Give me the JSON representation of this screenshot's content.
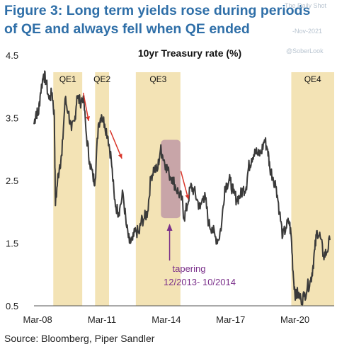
{
  "figure": {
    "title_line1": "Figure 3: Long term yields rose during periods",
    "title_line2": "of QE and always fell when QE ended",
    "source": "Source: Bloomberg, Piper Sandler",
    "watermark_brand": "The Daily Shot",
    "watermark_date": "-Nov-2021",
    "watermark_handle": "@SoberLook"
  },
  "colors": {
    "title": "#2f6fa8",
    "qe_band": "#f3e3b5",
    "tapering_band": "#bf9aa6",
    "line": "#3a3a3a",
    "arrow": "#d9362b",
    "annotation": "#7a2f8a"
  },
  "chart_data": {
    "type": "line",
    "title": "10yr Treasury rate (%)",
    "xlabel": "",
    "ylabel": "",
    "ylim": [
      0.5,
      4.5
    ],
    "xlim": [
      2008.0,
      2022.0
    ],
    "yticks": [
      4.5,
      3.5,
      2.5,
      1.5,
      0.5
    ],
    "ytick_labels": [
      "4.5",
      "3.5",
      "2.5",
      "1.5",
      "0.5"
    ],
    "xticks": [
      2008.17,
      2011.17,
      2014.17,
      2017.17,
      2020.17
    ],
    "xtick_labels": [
      "Mar-08",
      "Mar-11",
      "Mar-14",
      "Mar-17",
      "Mar-20"
    ],
    "grid": false,
    "legend": "none",
    "shaded_periods": [
      {
        "label": "QE1",
        "start": 2008.9,
        "end": 2010.25
      },
      {
        "label": "QE2",
        "start": 2010.85,
        "end": 2011.5
      },
      {
        "label": "QE3",
        "start": 2012.75,
        "end": 2014.83
      },
      {
        "label": "QE4",
        "start": 2020.0,
        "end": 2022.0
      }
    ],
    "tapering_period": {
      "start": 2013.92,
      "end": 2014.83,
      "ymin": 1.9,
      "ymax": 3.15
    },
    "annotation": {
      "line1": "tapering",
      "line2": "12/2013- 10/2014"
    },
    "arrows": [
      {
        "from": [
          2010.3,
          3.9
        ],
        "to": [
          2010.55,
          3.45
        ]
      },
      {
        "from": [
          2011.55,
          3.3
        ],
        "to": [
          2012.1,
          2.85
        ]
      },
      {
        "from": [
          2014.85,
          2.65
        ],
        "to": [
          2015.2,
          2.2
        ]
      }
    ],
    "series": [
      {
        "x": [
          2008.0,
          2008.1,
          2008.2,
          2008.3,
          2008.45,
          2008.55,
          2008.7,
          2008.85,
          2008.95,
          2009.0,
          2009.1,
          2009.2,
          2009.3,
          2009.45,
          2009.6,
          2009.75,
          2009.9,
          2010.0,
          2010.15,
          2010.3,
          2010.45,
          2010.6,
          2010.75,
          2010.85,
          2011.0,
          2011.15,
          2011.3,
          2011.45,
          2011.6,
          2011.75,
          2011.9,
          2012.0,
          2012.15,
          2012.3,
          2012.45,
          2012.6,
          2012.75,
          2012.9,
          2013.0,
          2013.15,
          2013.3,
          2013.45,
          2013.6,
          2013.75,
          2013.9,
          2014.0,
          2014.15,
          2014.3,
          2014.45,
          2014.6,
          2014.75,
          2014.9,
          2015.0,
          2015.15,
          2015.3,
          2015.45,
          2015.6,
          2015.75,
          2015.9,
          2016.0,
          2016.15,
          2016.3,
          2016.45,
          2016.6,
          2016.75,
          2016.9,
          2017.0,
          2017.15,
          2017.3,
          2017.45,
          2017.6,
          2017.75,
          2017.9,
          2018.0,
          2018.15,
          2018.3,
          2018.45,
          2018.6,
          2018.75,
          2018.9,
          2019.0,
          2019.15,
          2019.3,
          2019.45,
          2019.6,
          2019.75,
          2019.9,
          2020.0,
          2020.1,
          2020.2,
          2020.3,
          2020.45,
          2020.6,
          2020.75,
          2020.9,
          2021.0,
          2021.1,
          2021.2,
          2021.35,
          2021.5,
          2021.65,
          2021.8
        ],
        "y": [
          3.4,
          3.6,
          3.55,
          3.9,
          4.2,
          4.1,
          3.8,
          3.9,
          3.5,
          2.1,
          2.5,
          2.75,
          2.9,
          3.8,
          3.6,
          3.3,
          3.45,
          3.85,
          3.75,
          3.85,
          3.2,
          2.8,
          2.55,
          2.5,
          3.4,
          3.55,
          3.4,
          3.2,
          2.85,
          2.2,
          2.0,
          2.05,
          2.3,
          1.8,
          1.5,
          1.55,
          1.7,
          1.65,
          1.85,
          1.9,
          2.0,
          2.55,
          2.7,
          2.65,
          3.0,
          2.9,
          2.75,
          2.6,
          2.55,
          2.4,
          2.3,
          2.2,
          1.9,
          2.1,
          2.4,
          2.35,
          2.2,
          2.05,
          2.25,
          2.2,
          1.8,
          1.75,
          1.6,
          1.55,
          1.8,
          2.4,
          2.45,
          2.5,
          2.3,
          2.2,
          2.25,
          2.35,
          2.4,
          2.7,
          2.85,
          3.0,
          2.9,
          2.95,
          3.15,
          3.0,
          2.7,
          2.55,
          2.4,
          2.0,
          1.6,
          1.75,
          1.85,
          1.6,
          0.95,
          0.65,
          0.7,
          0.6,
          0.65,
          0.8,
          0.9,
          1.1,
          1.4,
          1.7,
          1.6,
          1.3,
          1.35,
          1.55
        ]
      }
    ]
  }
}
